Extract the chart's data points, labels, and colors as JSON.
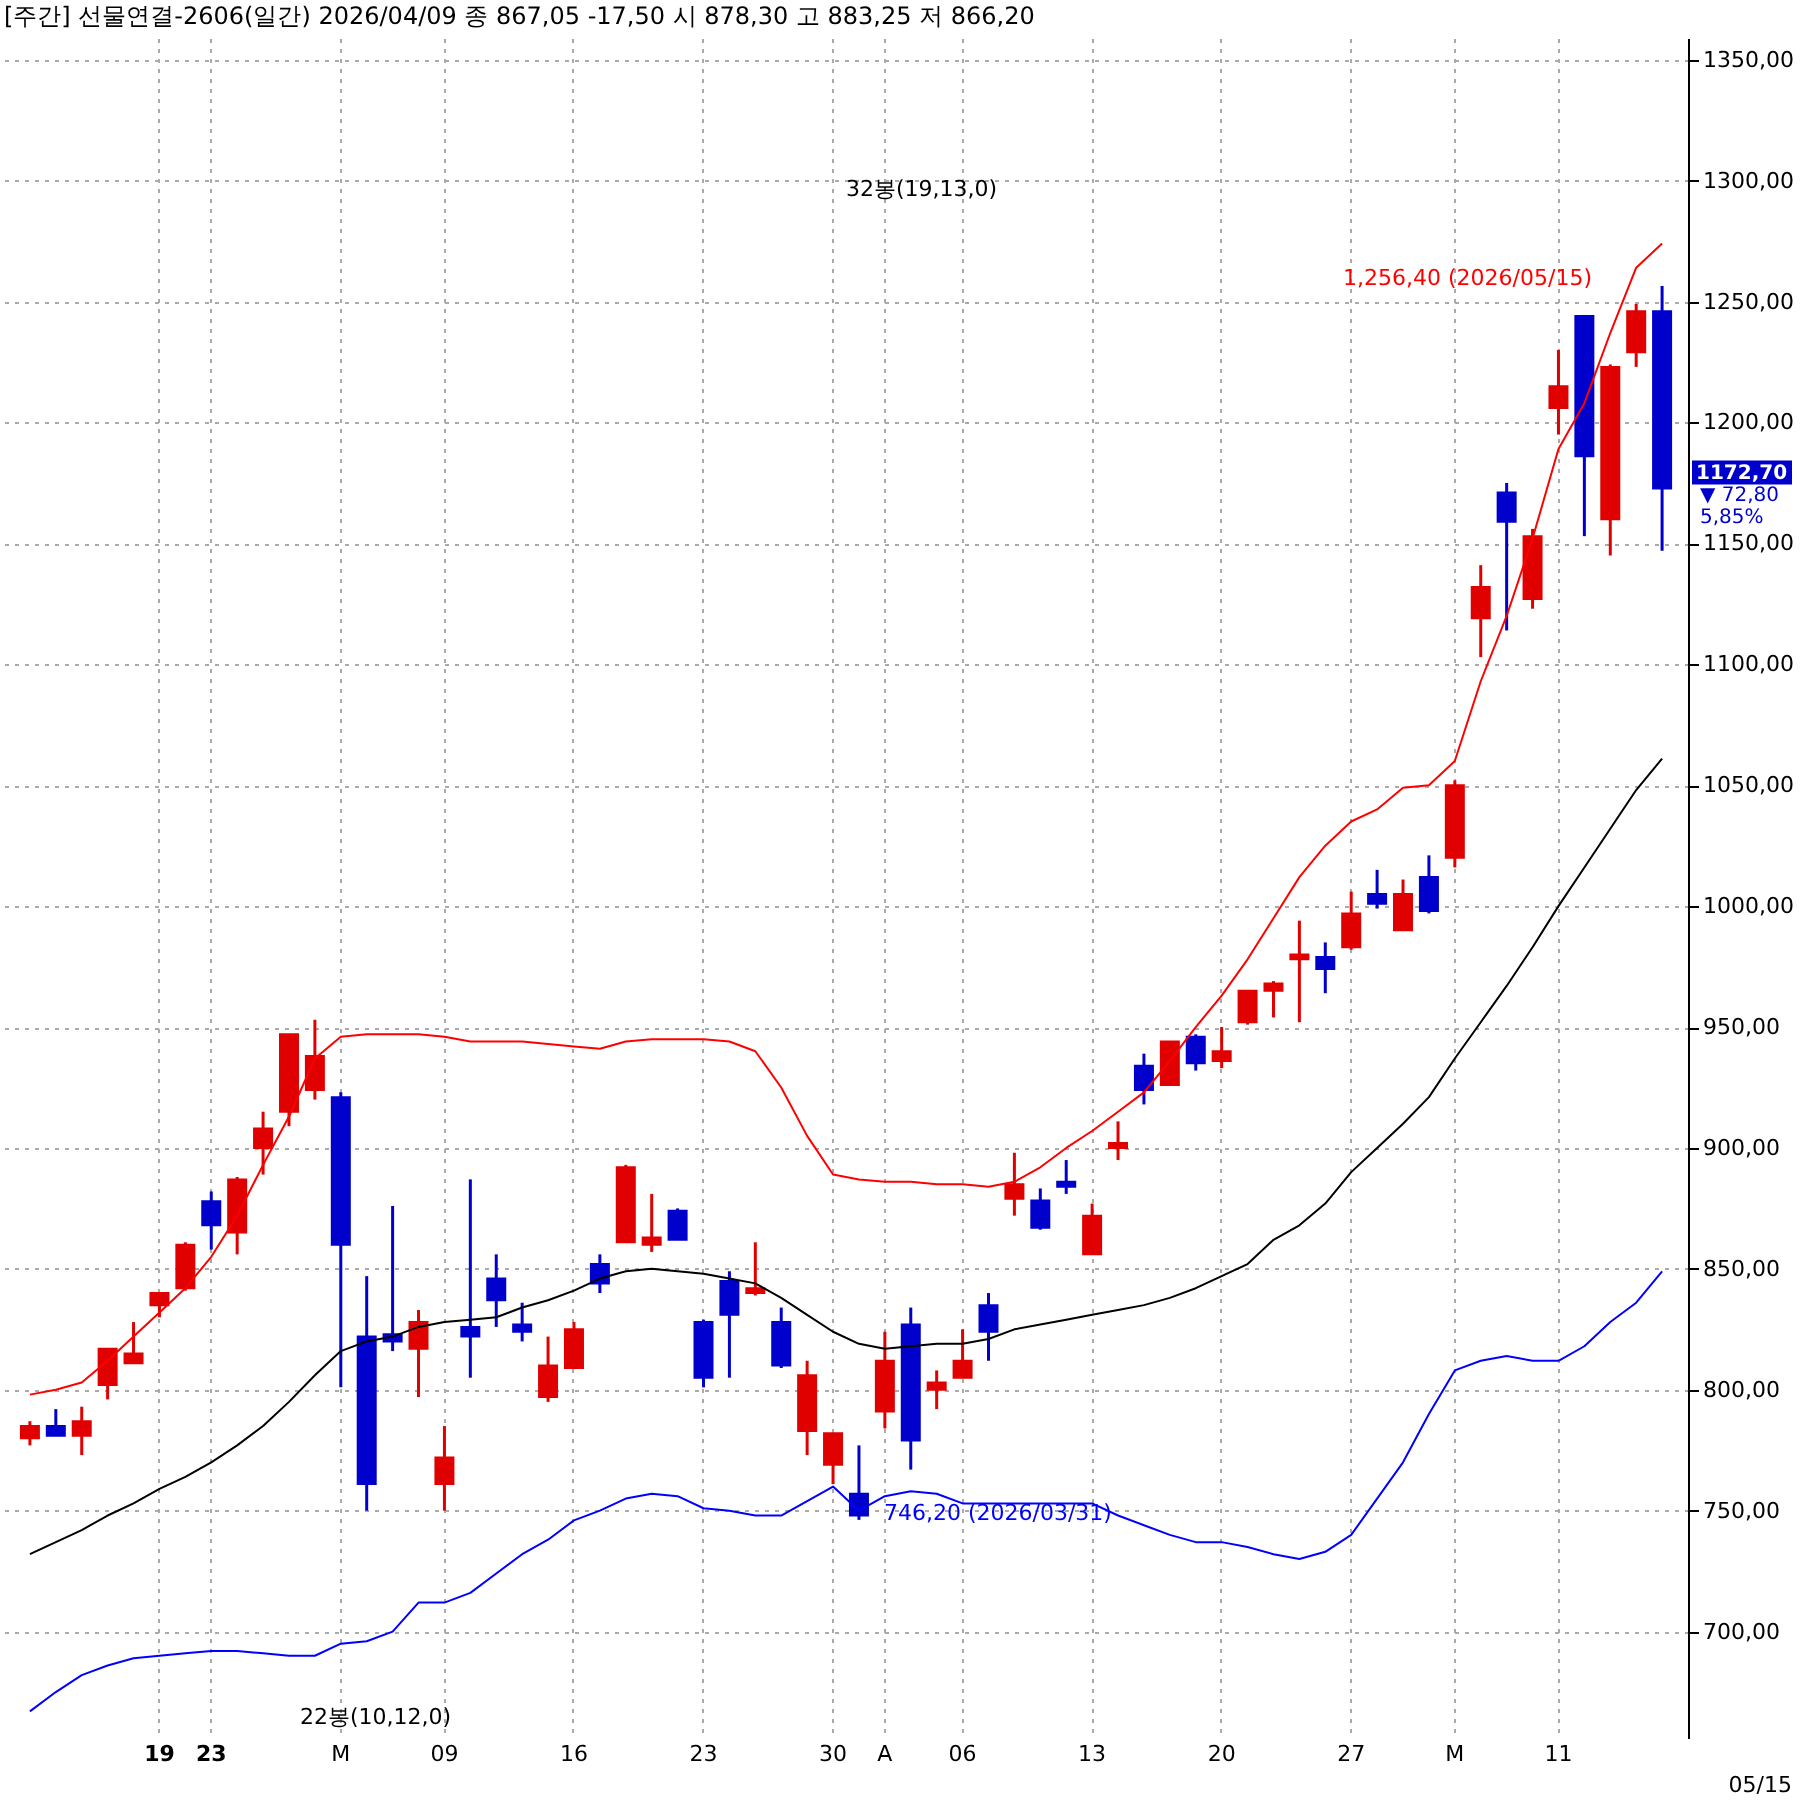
{
  "chart_data": {
    "type": "candlestick",
    "title": "[주간] 선물연결-2606(일간) 2026/04/09  종 867,05 -17,50  시 878,30 고 883,25 저 866,20",
    "categories": [
      null,
      null,
      null,
      null,
      null,
      "19",
      null,
      "23",
      null,
      null,
      null,
      null,
      "M",
      null,
      null,
      null,
      "09",
      null,
      null,
      null,
      null,
      "16",
      null,
      null,
      null,
      null,
      "23",
      null,
      null,
      null,
      null,
      "30",
      null,
      "A",
      null,
      null,
      "06",
      null,
      null,
      null,
      null,
      "13",
      null,
      null,
      null,
      null,
      "20",
      null,
      null,
      null,
      null,
      "27",
      null,
      null,
      null,
      "M",
      null,
      null,
      null,
      "11",
      null,
      null,
      null,
      null
    ],
    "ohlc": [
      [
        780,
        787,
        777,
        785
      ],
      [
        785,
        792,
        781,
        781
      ],
      [
        781,
        793,
        773,
        787
      ],
      [
        802,
        817,
        796,
        817
      ],
      [
        811,
        828,
        811,
        815
      ],
      [
        835,
        840,
        830,
        840
      ],
      [
        842,
        861,
        841,
        860
      ],
      [
        878,
        882,
        858,
        868
      ],
      [
        865,
        888,
        856,
        887
      ],
      [
        900,
        915,
        889,
        908
      ],
      [
        915,
        947,
        909,
        947
      ],
      [
        924,
        953,
        920,
        938
      ],
      [
        921,
        923,
        801,
        860
      ],
      [
        822,
        847,
        750,
        761
      ],
      [
        823,
        876,
        816,
        820
      ],
      [
        817,
        833,
        797,
        828
      ],
      [
        761,
        785,
        750,
        772
      ],
      [
        826,
        887,
        805,
        822
      ],
      [
        846,
        856,
        826,
        837
      ],
      [
        827,
        836,
        820,
        824
      ],
      [
        797,
        822,
        795,
        810
      ],
      [
        809,
        828,
        809,
        825
      ],
      [
        852,
        856,
        840,
        844
      ],
      [
        861,
        893,
        861,
        892
      ],
      [
        860,
        881,
        857,
        863
      ],
      [
        874,
        875,
        862,
        862
      ],
      [
        828,
        829,
        801,
        805
      ],
      [
        845,
        849,
        805,
        831
      ],
      [
        840,
        861,
        839,
        842
      ],
      [
        828,
        834,
        809,
        810
      ],
      [
        783,
        812,
        773,
        806
      ],
      [
        769,
        782,
        761,
        782
      ],
      [
        757,
        777,
        746.2,
        748
      ],
      [
        791,
        824,
        784,
        812
      ],
      [
        827,
        834,
        767,
        779
      ],
      [
        800,
        808,
        792,
        803
      ],
      [
        805,
        825,
        805,
        812
      ],
      [
        835,
        840,
        812,
        824
      ],
      [
        879,
        898,
        872,
        885
      ],
      [
        878.3,
        883.25,
        866.2,
        867.05
      ],
      [
        886,
        895,
        881,
        884
      ],
      [
        856,
        877,
        856,
        872
      ],
      [
        900,
        911,
        895,
        902
      ],
      [
        934,
        939,
        918,
        924
      ],
      [
        926,
        944,
        926,
        944
      ],
      [
        946,
        947,
        932,
        935
      ],
      [
        936,
        950,
        933,
        940
      ],
      [
        952,
        965,
        951,
        965
      ],
      [
        965,
        969,
        954,
        968
      ],
      [
        978,
        994,
        952,
        980
      ],
      [
        979,
        985,
        964,
        974
      ],
      [
        983,
        1006,
        982,
        997
      ],
      [
        1005,
        1015,
        999,
        1001
      ],
      [
        990,
        1011,
        990,
        1005
      ],
      [
        1012,
        1021,
        997,
        998
      ],
      [
        1020,
        1052,
        1016,
        1050
      ],
      [
        1119,
        1141,
        1103,
        1132
      ],
      [
        1171,
        1175,
        1114,
        1159
      ],
      [
        1127,
        1156,
        1123,
        1153
      ],
      [
        1206,
        1230,
        1195,
        1215
      ],
      [
        1244,
        1244,
        1153,
        1186
      ],
      [
        1160,
        1224,
        1145,
        1223
      ],
      [
        1229,
        1249,
        1223,
        1246
      ],
      [
        1246,
        1256.4,
        1147,
        1172.7
      ]
    ],
    "colors": [
      "#e00000",
      "#0000cc",
      "#e00000",
      "#e00000",
      "#e00000",
      "#e00000",
      "#e00000",
      "#0000cc",
      "#e00000",
      "#e00000",
      "#e00000",
      "#e00000",
      "#0000cc",
      "#0000cc",
      "#0000cc",
      "#e00000",
      "#e00000",
      "#0000cc",
      "#0000cc",
      "#0000cc",
      "#e00000",
      "#e00000",
      "#0000cc",
      "#e00000",
      "#e00000",
      "#0000cc",
      "#0000cc",
      "#0000cc",
      "#e00000",
      "#0000cc",
      "#e00000",
      "#e00000",
      "#0000cc",
      "#e00000",
      "#0000cc",
      "#e00000",
      "#e00000",
      "#0000cc",
      "#e00000",
      "#0000cc",
      "#0000cc",
      "#e00000",
      "#e00000",
      "#0000cc",
      "#e00000",
      "#0000cc",
      "#e00000",
      "#e00000",
      "#e00000",
      "#e00000",
      "#0000cc",
      "#e00000",
      "#0000cc",
      "#e00000",
      "#0000cc",
      "#e00000",
      "#e00000",
      "#0000cc",
      "#e00000",
      "#e00000",
      "#0000cc",
      "#e00000",
      "#e00000",
      "#0000cc"
    ],
    "series": [
      {
        "type": "line",
        "color": "#ff0000",
        "values": [
          798,
          800,
          803,
          812,
          822,
          832,
          842,
          855,
          872,
          893,
          913,
          937,
          946,
          947,
          947,
          947,
          946,
          944,
          944,
          944,
          943,
          942,
          941,
          944,
          945,
          945,
          945,
          944,
          940,
          925,
          905,
          889,
          887,
          886,
          886,
          885,
          885,
          884,
          886,
          892,
          900,
          907,
          915,
          923,
          936,
          950,
          963,
          978,
          995,
          1012,
          1025,
          1035,
          1040,
          1049,
          1050,
          1060,
          1093,
          1120,
          1152,
          1189,
          1208,
          1237,
          1264,
          1274
        ]
      },
      {
        "type": "line",
        "color": "#000000",
        "values": [
          732,
          737,
          742,
          748,
          753,
          759,
          764,
          770,
          777,
          785,
          795,
          806,
          816,
          820,
          822,
          826,
          828,
          829,
          830,
          834,
          837,
          841,
          846,
          849,
          850,
          849,
          848,
          846,
          844,
          838,
          831,
          824,
          819,
          817,
          818,
          819,
          819,
          821,
          825,
          827,
          829,
          831,
          833,
          835,
          838,
          842,
          847,
          852,
          862,
          868,
          877,
          890,
          900,
          910,
          921,
          937,
          952,
          967,
          983,
          1000,
          1016,
          1032,
          1048,
          1061
        ]
      },
      {
        "type": "line",
        "color": "#0000ff",
        "values": [
          667,
          675,
          682,
          686,
          689,
          690,
          691,
          692,
          692,
          691,
          690,
          690,
          695,
          696,
          700,
          712,
          712,
          716,
          724,
          732,
          738,
          746,
          750,
          755,
          757,
          756,
          751,
          750,
          748,
          748,
          754,
          760,
          750,
          756,
          758,
          757,
          753,
          753,
          753,
          753,
          753,
          753,
          748,
          744,
          740,
          737,
          737,
          735,
          732,
          730,
          733,
          740,
          755,
          770,
          790,
          808,
          812,
          814,
          812,
          812,
          818,
          828,
          836,
          849
        ]
      }
    ],
    "ylim": [
      656,
      1359
    ],
    "yticks": [
      {
        "value": 700,
        "label": "700,00"
      },
      {
        "value": 750,
        "label": "750,00"
      },
      {
        "value": 800,
        "label": "800,00"
      },
      {
        "value": 850,
        "label": "850,00"
      },
      {
        "value": 900,
        "label": "900,00"
      },
      {
        "value": 950,
        "label": "950,00"
      },
      {
        "value": 1000,
        "label": "1000,00"
      },
      {
        "value": 1050,
        "label": "1050,00"
      },
      {
        "value": 1100,
        "label": "1100,00"
      },
      {
        "value": 1150,
        "label": "1150,00"
      },
      {
        "value": 1200,
        "label": "1200,00"
      },
      {
        "value": 1250,
        "label": "1250,00"
      },
      {
        "value": 1300,
        "label": "1300,00"
      },
      {
        "value": 1350,
        "label": "1350,00"
      }
    ],
    "grid": true,
    "annotations": [
      "22봉(10,12,0)",
      "32봉(19,13,0)",
      "746,20 (2026/03/31)",
      "1,256,40 (2026/05/15)",
      "1172,70",
      "▼ 72,80",
      "5,85%",
      "05/15"
    ]
  }
}
